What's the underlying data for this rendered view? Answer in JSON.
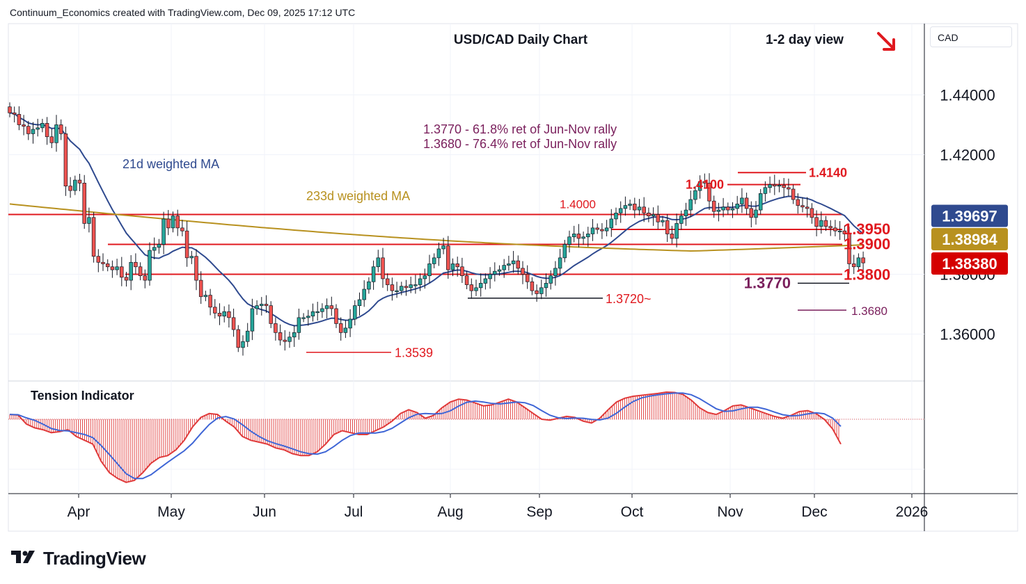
{
  "header": {
    "attribution": "Continuum_Economics created with TradingView.com, Dec 09, 2025 17:12 UTC"
  },
  "footer": {
    "brand": "TradingView"
  },
  "colors": {
    "up": "#26a69a",
    "down": "#ef5350",
    "candle_outline": "#131722",
    "ma21": "#2f4a8f",
    "ma233": "#b8911f",
    "level": "#e0191f",
    "annotation": "#7a1f5c",
    "tension_fast": "#e03a3a",
    "tension_slow": "#3f66d6"
  },
  "price_scale": {
    "currency": "CAD",
    "ticks": [
      "1.44000",
      "1.42000",
      "1.36000"
    ],
    "partial_tick": "1.38000",
    "badges": [
      {
        "label": "1.39697",
        "value": 1.39697,
        "color": "#2f4a8f"
      },
      {
        "label": "1.38984",
        "value": 1.38984,
        "color": "#b8911f"
      },
      {
        "label": "1.38380",
        "value": 1.3838,
        "color": "#d50000"
      }
    ]
  },
  "time_axis": {
    "labels": [
      "Apr",
      "May",
      "Jun",
      "Jul",
      "Aug",
      "Sep",
      "Oct",
      "Nov",
      "Dec",
      "2026"
    ]
  },
  "chart_data": {
    "type": "candlestick",
    "title": "USD/CAD Daily Chart",
    "view": "1-2 day view",
    "view_direction": "down",
    "ylim": [
      1.352,
      1.4565
    ],
    "last_close": 1.3838,
    "ma_labels": {
      "ma21": "21d weighted MA",
      "ma233": "233d weighted MA"
    },
    "retracement_notes": [
      "1.3770 - 61.8% ret of Jun-Nov rally",
      "1.3680 - 76.4% ret of Jun-Nov rally"
    ],
    "levels": [
      {
        "value": 1.414,
        "label": "1.4140"
      },
      {
        "value": 1.41,
        "label": "1.4100"
      },
      {
        "value": 1.4,
        "label": "1.4000"
      },
      {
        "value": 1.395,
        "label": "1.3950"
      },
      {
        "value": 1.39,
        "label": "1.3900"
      },
      {
        "value": 1.38,
        "label": "1.3800"
      },
      {
        "value": 1.377,
        "label": "1.3770"
      },
      {
        "value": 1.372,
        "label": "1.3720~"
      },
      {
        "value": 1.368,
        "label": "1.3680"
      },
      {
        "value": 1.3539,
        "label": "1.3539"
      }
    ],
    "price_waypoints": [
      [
        1.434,
        1.4335
      ],
      [
        1.43,
        1.4295
      ],
      [
        1.427,
        1.4285
      ],
      [
        1.429,
        1.4305
      ],
      [
        1.426,
        1.424
      ],
      [
        1.43,
        1.427
      ],
      [
        1.4095,
        1.408
      ],
      [
        1.4115,
        1.4105
      ],
      [
        1.397,
        1.399
      ],
      [
        1.386,
        1.384
      ],
      [
        1.3835,
        1.3825
      ],
      [
        1.3815,
        1.3825
      ],
      [
        1.379,
        1.378
      ],
      [
        1.384,
        1.3825
      ],
      [
        1.3795,
        1.378
      ],
      [
        1.388,
        1.389
      ],
      [
        1.39,
        1.3985
      ],
      [
        1.3955,
        1.3995
      ],
      [
        1.3955,
        1.3945
      ],
      [
        1.3855,
        1.386
      ],
      [
        1.378,
        1.3725
      ],
      [
        1.373,
        1.369
      ],
      [
        1.367,
        1.366
      ],
      [
        1.3675,
        1.3655
      ],
      [
        1.3615,
        1.3555
      ],
      [
        1.3575,
        1.361
      ],
      [
        1.3685,
        1.3695
      ],
      [
        1.37,
        1.3695
      ],
      [
        1.3635,
        1.3605
      ],
      [
        1.358,
        1.3575
      ],
      [
        1.359,
        1.3605
      ],
      [
        1.3655,
        1.3655
      ],
      [
        1.366,
        1.3675
      ],
      [
        1.3675,
        1.3685
      ],
      [
        1.3695,
        1.3685
      ],
      [
        1.3635,
        1.3605
      ],
      [
        1.362,
        1.365
      ],
      [
        1.3695,
        1.3715
      ],
      [
        1.375,
        1.3775
      ],
      [
        1.3825,
        1.3855
      ],
      [
        1.3785,
        1.3765
      ],
      [
        1.3745,
        1.3745
      ],
      [
        1.376,
        1.3755
      ],
      [
        1.3765,
        1.3765
      ],
      [
        1.3785,
        1.3795
      ],
      [
        1.3835,
        1.3855
      ],
      [
        1.3885,
        1.3895
      ],
      [
        1.3815,
        1.3835
      ],
      [
        1.3825,
        1.3795
      ],
      [
        1.3765,
        1.3745
      ],
      [
        1.3755,
        1.377
      ],
      [
        1.3785,
        1.38
      ],
      [
        1.381,
        1.3815
      ],
      [
        1.383,
        1.3835
      ],
      [
        1.3845,
        1.382
      ],
      [
        1.38,
        1.3775
      ],
      [
        1.3745,
        1.3735
      ],
      [
        1.3755,
        1.377
      ],
      [
        1.3795,
        1.382
      ],
      [
        1.3855,
        1.39
      ],
      [
        1.3925,
        1.3935
      ],
      [
        1.392,
        1.3925
      ],
      [
        1.3935,
        1.3955
      ],
      [
        1.395,
        1.3945
      ],
      [
        1.3955,
        1.3985
      ],
      [
        1.4005,
        1.402
      ],
      [
        1.403,
        1.4035
      ],
      [
        1.4015,
        1.4025
      ],
      [
        1.4005,
        1.3995
      ],
      [
        1.4,
        1.3975
      ],
      [
        1.398,
        1.3935
      ],
      [
        1.392,
        1.397
      ],
      [
        1.3995,
        1.4015
      ],
      [
        1.405,
        1.408
      ],
      [
        1.411,
        1.4105
      ],
      [
        1.4045,
        1.401
      ],
      [
        1.4015,
        1.4025
      ],
      [
        1.4015,
        1.402
      ],
      [
        1.4035,
        1.4055
      ],
      [
        1.402,
        1.399
      ],
      [
        1.4015,
        1.407
      ],
      [
        1.409,
        1.41
      ],
      [
        1.4095,
        1.4098
      ],
      [
        1.409,
        1.4085
      ],
      [
        1.405,
        1.403
      ],
      [
        1.4025,
        1.402
      ],
      [
        1.399,
        1.396
      ],
      [
        1.398,
        1.396
      ],
      [
        1.3955,
        1.3945
      ],
      [
        1.3945,
        1.3935
      ],
      [
        1.3835,
        1.3825
      ],
      [
        1.3855,
        1.3838
      ]
    ]
  },
  "tension": {
    "title": "Tension Indicator",
    "fast": [
      0.25,
      0.22,
      -0.25,
      -0.45,
      -0.55,
      -0.7,
      -0.65,
      -0.55,
      -0.9,
      -1.1,
      -1.3,
      -2.2,
      -2.8,
      -3.1,
      -3.3,
      -3.2,
      -2.8,
      -2.3,
      -2.0,
      -1.9,
      -1.6,
      -1.1,
      -0.4,
      0.1,
      0.3,
      0.25,
      -0.1,
      -0.4,
      -0.9,
      -1.1,
      -1.2,
      -1.3,
      -1.5,
      -1.6,
      -1.8,
      -1.9,
      -1.9,
      -1.7,
      -1.3,
      -0.8,
      -0.6,
      -0.7,
      -0.8,
      -0.8,
      -0.6,
      -0.4,
      -0.1,
      0.3,
      0.5,
      0.35,
      0.05,
      0.2,
      0.6,
      0.9,
      1.05,
      1.0,
      0.85,
      0.7,
      0.75,
      0.9,
      1.05,
      0.9,
      0.6,
      0.3,
      0.0,
      -0.05,
      0.05,
      0.15,
      0.1,
      -0.1,
      -0.2,
      0.05,
      0.5,
      0.9,
      1.1,
      1.2,
      1.25,
      1.3,
      1.35,
      1.42,
      1.4,
      1.3,
      1.0,
      0.6,
      0.35,
      0.25,
      0.45,
      0.7,
      0.75,
      0.6,
      0.45,
      0.3,
      0.15,
      0.05,
      0.2,
      0.4,
      0.45,
      0.3,
      0.0,
      -0.5,
      -1.3
    ]
  }
}
